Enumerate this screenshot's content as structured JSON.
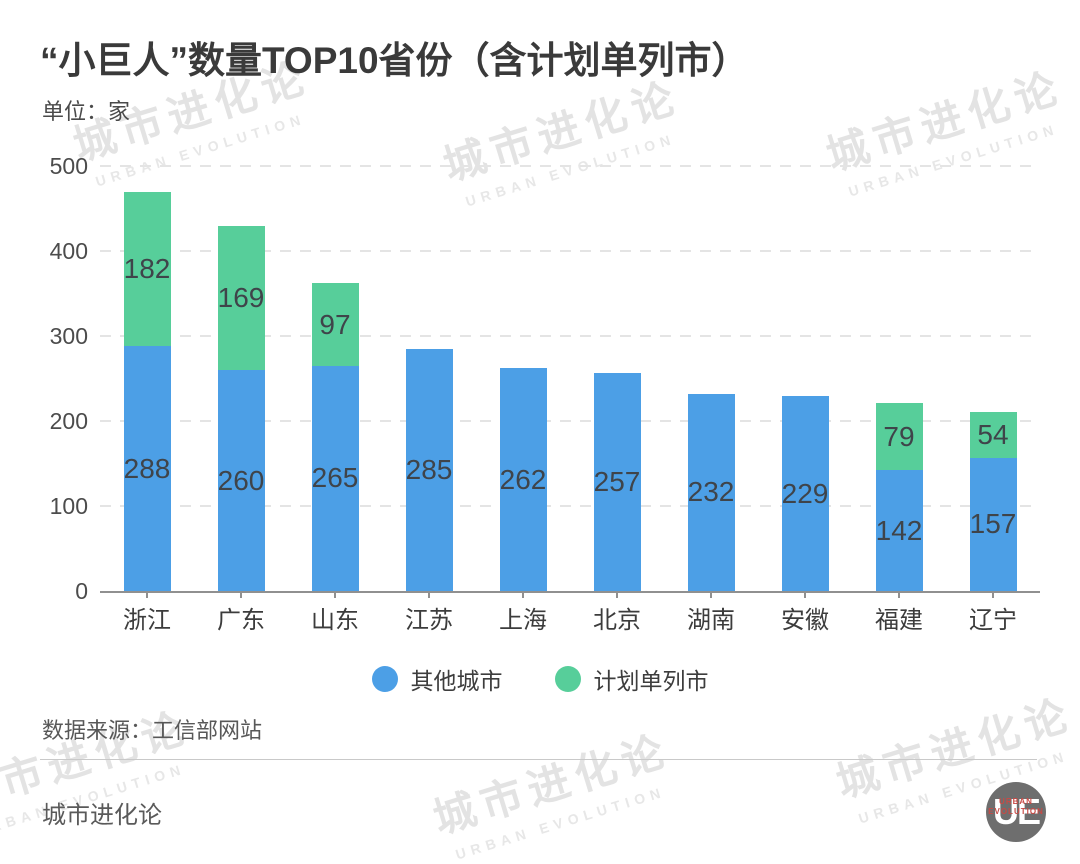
{
  "watermark": {
    "cn": "城市进化论",
    "en": "URBAN EVOLUTION"
  },
  "header": {
    "unit": "单位：家"
  },
  "chart_data": {
    "type": "bar",
    "stacked": true,
    "title": "“小巨人”数量TOP10省份（含计划单列市）",
    "unit_label": "单位：家",
    "xlabel": "",
    "ylabel": "家",
    "ylim": [
      0,
      500
    ],
    "yticks": [
      0,
      100,
      200,
      300,
      400,
      500
    ],
    "grid": "horizontal-dashed",
    "legend_position": "bottom",
    "categories": [
      "浙江",
      "广东",
      "山东",
      "江苏",
      "上海",
      "北京",
      "湖南",
      "安徽",
      "福建",
      "辽宁"
    ],
    "series": [
      {
        "name": "其他城市",
        "color": "#4C9FE6",
        "values": [
          288,
          260,
          265,
          285,
          262,
          257,
          232,
          229,
          142,
          157
        ]
      },
      {
        "name": "计划单列市",
        "color": "#57CE9A",
        "values": [
          182,
          169,
          97,
          null,
          null,
          null,
          null,
          null,
          79,
          54
        ]
      }
    ]
  },
  "footer": {
    "source": "数据来源：工信部网站",
    "brand": "城市进化论",
    "logo": {
      "text": "UE",
      "sub_line1": "URBAN",
      "sub_line2": "EVOLUTION"
    }
  },
  "colors": {
    "bar_blue": "#4C9FE6",
    "bar_green": "#57CE9A",
    "grid_line": "#e4e4e4",
    "axis_line": "#909090",
    "value_label": "#3f444a",
    "title_text": "#3a3a3a",
    "watermark": "#e3e3e3",
    "logo_bg": "#6e6e6e",
    "logo_red": "#c74a45"
  }
}
